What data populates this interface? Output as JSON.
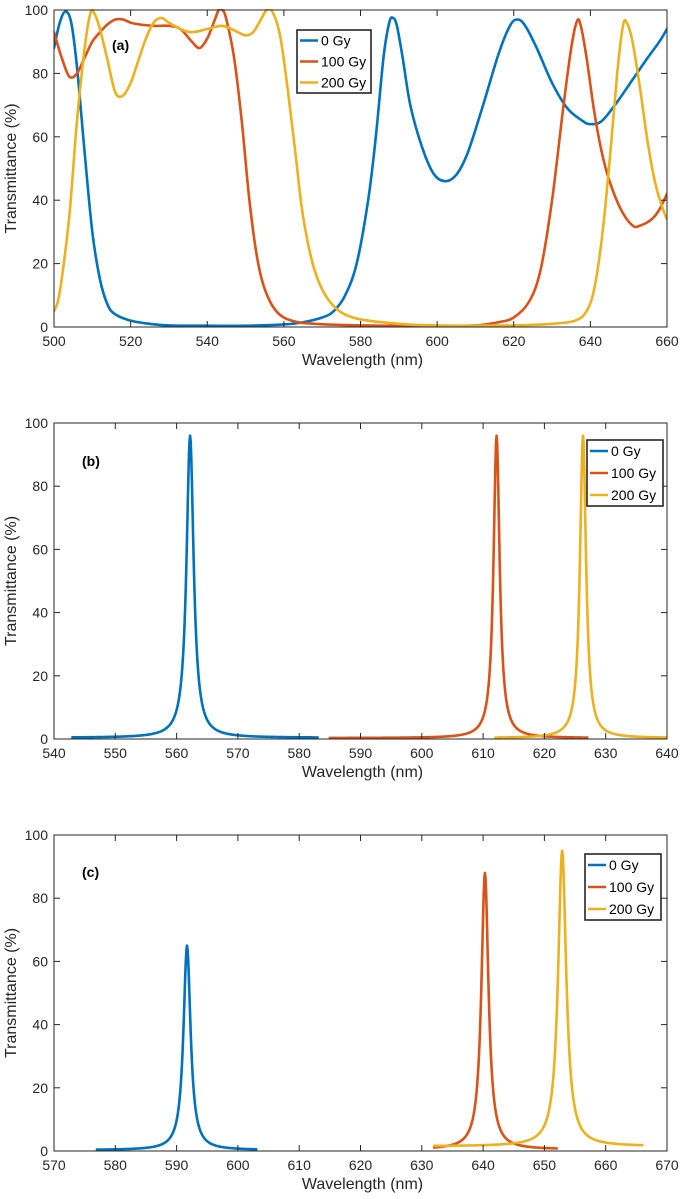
{
  "chart_data": [
    {
      "type": "line",
      "panel_label": "(a)",
      "xlabel": "Wavelength (nm)",
      "ylabel": "Transmittance (%)",
      "xlim": [
        500,
        660
      ],
      "ylim": [
        0,
        100
      ],
      "xticks": [
        500,
        520,
        540,
        560,
        580,
        600,
        620,
        640,
        660
      ],
      "yticks": [
        0,
        20,
        40,
        60,
        80,
        100
      ],
      "legend_position": "top-center",
      "series": [
        {
          "name": "0 Gy",
          "color": "#0072BD",
          "points": [
            [
              500,
              88
            ],
            [
              501.5,
              96
            ],
            [
              503,
              99.5
            ],
            [
              504.5,
              96
            ],
            [
              506,
              82
            ],
            [
              508,
              55
            ],
            [
              510,
              30
            ],
            [
              512,
              15
            ],
            [
              514,
              7
            ],
            [
              516,
              4
            ],
            [
              520,
              2
            ],
            [
              525,
              1
            ],
            [
              530,
              0.5
            ],
            [
              540,
              0.4
            ],
            [
              550,
              0.4
            ],
            [
              560,
              0.8
            ],
            [
              565,
              1.5
            ],
            [
              570,
              3
            ],
            [
              573,
              5
            ],
            [
              576,
              10
            ],
            [
              579,
              20
            ],
            [
              582,
              40
            ],
            [
              584,
              60
            ],
            [
              586,
              85
            ],
            [
              587.5,
              96
            ],
            [
              588.5,
              97.5
            ],
            [
              589.5,
              95
            ],
            [
              591,
              85
            ],
            [
              593,
              70
            ],
            [
              596,
              57
            ],
            [
              599,
              48.5
            ],
            [
              602,
              46
            ],
            [
              605,
              48
            ],
            [
              608,
              55
            ],
            [
              612,
              70
            ],
            [
              616,
              86
            ],
            [
              619,
              95
            ],
            [
              621,
              97
            ],
            [
              623,
              95
            ],
            [
              626,
              88
            ],
            [
              630,
              77
            ],
            [
              634,
              69
            ],
            [
              638,
              65
            ],
            [
              640,
              64
            ],
            [
              643,
              65
            ],
            [
              647,
              71
            ],
            [
              651,
              78
            ],
            [
              655,
              85
            ],
            [
              658,
              90
            ],
            [
              660,
              94
            ]
          ]
        },
        {
          "name": "100 Gy",
          "color": "#D95319",
          "points": [
            [
              500,
              93
            ],
            [
              502,
              85
            ],
            [
              504,
              79
            ],
            [
              506,
              80
            ],
            [
              508,
              85
            ],
            [
              510,
              90
            ],
            [
              512,
              93
            ],
            [
              514,
              95.5
            ],
            [
              516,
              97
            ],
            [
              518,
              97
            ],
            [
              520,
              96
            ],
            [
              522,
              95.5
            ],
            [
              526,
              95
            ],
            [
              530,
              95
            ],
            [
              533,
              94
            ],
            [
              536,
              90
            ],
            [
              538,
              88
            ],
            [
              540,
              91
            ],
            [
              542,
              97
            ],
            [
              543,
              100
            ],
            [
              544,
              100
            ],
            [
              545,
              97
            ],
            [
              547,
              85
            ],
            [
              549,
              65
            ],
            [
              551,
              40
            ],
            [
              553,
              22
            ],
            [
              555,
              12
            ],
            [
              558,
              5
            ],
            [
              562,
              2
            ],
            [
              568,
              1
            ],
            [
              580,
              0.5
            ],
            [
              600,
              0.3
            ],
            [
              610,
              0.5
            ],
            [
              616,
              1.5
            ],
            [
              620,
              3
            ],
            [
              624,
              8
            ],
            [
              627,
              18
            ],
            [
              630,
              40
            ],
            [
              633,
              70
            ],
            [
              635,
              88
            ],
            [
              636.5,
              96.5
            ],
            [
              637.5,
              95
            ],
            [
              639,
              85
            ],
            [
              641,
              68
            ],
            [
              643,
              55
            ],
            [
              645,
              46
            ],
            [
              648,
              37
            ],
            [
              651,
              32
            ],
            [
              653,
              32
            ],
            [
              656,
              34
            ],
            [
              658,
              37
            ],
            [
              660,
              42
            ]
          ]
        },
        {
          "name": "200 Gy",
          "color": "#EDB120",
          "points": [
            [
              500,
              5
            ],
            [
              501,
              8
            ],
            [
              502,
              15
            ],
            [
              504,
              35
            ],
            [
              506,
              65
            ],
            [
              508,
              88
            ],
            [
              509.5,
              99
            ],
            [
              510.5,
              99
            ],
            [
              512,
              94
            ],
            [
              514,
              84
            ],
            [
              516,
              74
            ],
            [
              518,
              73
            ],
            [
              520,
              77
            ],
            [
              522,
              84
            ],
            [
              524,
              91
            ],
            [
              526,
              96
            ],
            [
              528,
              97.5
            ],
            [
              530,
              96
            ],
            [
              533,
              94
            ],
            [
              536,
              93
            ],
            [
              540,
              94
            ],
            [
              544,
              95
            ],
            [
              548,
              93
            ],
            [
              550,
              92
            ],
            [
              552,
              93
            ],
            [
              554,
              97
            ],
            [
              555.5,
              100
            ],
            [
              557,
              99.5
            ],
            [
              559,
              92
            ],
            [
              561,
              75
            ],
            [
              563,
              55
            ],
            [
              565,
              35
            ],
            [
              568,
              18
            ],
            [
              572,
              8
            ],
            [
              578,
              3
            ],
            [
              590,
              1
            ],
            [
              600,
              0.5
            ],
            [
              620,
              0.5
            ],
            [
              630,
              1
            ],
            [
              636,
              2
            ],
            [
              639,
              5
            ],
            [
              641,
              12
            ],
            [
              643,
              28
            ],
            [
              645,
              52
            ],
            [
              647,
              80
            ],
            [
              648.5,
              95
            ],
            [
              649.5,
              96
            ],
            [
              651,
              90
            ],
            [
              653,
              75
            ],
            [
              655,
              58
            ],
            [
              657,
              45
            ],
            [
              659,
              37
            ],
            [
              660,
              34
            ]
          ]
        }
      ]
    },
    {
      "type": "line",
      "panel_label": "(b)",
      "xlabel": "Wavelength (nm)",
      "ylabel": "Transmittance (%)",
      "xlim": [
        540,
        640
      ],
      "ylim": [
        0,
        100
      ],
      "xticks": [
        540,
        550,
        560,
        570,
        580,
        590,
        600,
        610,
        620,
        630,
        640
      ],
      "yticks": [
        0,
        20,
        40,
        60,
        80,
        100
      ],
      "legend_position": "top-right",
      "series": [
        {
          "name": "0 Gy",
          "color": "#0072BD",
          "peak": 562.2,
          "peak_value": 96,
          "hwhm": 0.7,
          "range": [
            543,
            583
          ],
          "baseline": 0.4
        },
        {
          "name": "100 Gy",
          "color": "#D95319",
          "peak": 612.2,
          "peak_value": 96,
          "hwhm": 0.6,
          "range": [
            585,
            627
          ],
          "baseline": 0.3
        },
        {
          "name": "200 Gy",
          "color": "#EDB120",
          "peak": 626.3,
          "peak_value": 96,
          "hwhm": 0.6,
          "range": [
            612,
            640
          ],
          "baseline": 0.3
        }
      ]
    },
    {
      "type": "line",
      "panel_label": "(c)",
      "xlabel": "Wavelength (nm)",
      "ylabel": "Transmittance (%)",
      "xlim": [
        570,
        670
      ],
      "ylim": [
        0,
        100
      ],
      "xticks": [
        570,
        580,
        590,
        600,
        610,
        620,
        630,
        640,
        650,
        660,
        670
      ],
      "yticks": [
        0,
        20,
        40,
        60,
        80,
        100
      ],
      "legend_position": "top-right",
      "series": [
        {
          "name": "0 Gy",
          "color": "#0072BD",
          "peak": 591.7,
          "peak_value": 65,
          "hwhm": 0.7,
          "range": [
            577,
            603
          ],
          "baseline": 0.3
        },
        {
          "name": "100 Gy",
          "color": "#D95319",
          "peak": 640.3,
          "peak_value": 88,
          "hwhm": 0.7,
          "range": [
            632,
            652
          ],
          "baseline": 0.5
        },
        {
          "name": "200 Gy",
          "color": "#EDB120",
          "peak": 652.9,
          "peak_value": 95,
          "hwhm": 0.8,
          "range": [
            632,
            666
          ],
          "baseline": 1.5
        }
      ]
    }
  ]
}
